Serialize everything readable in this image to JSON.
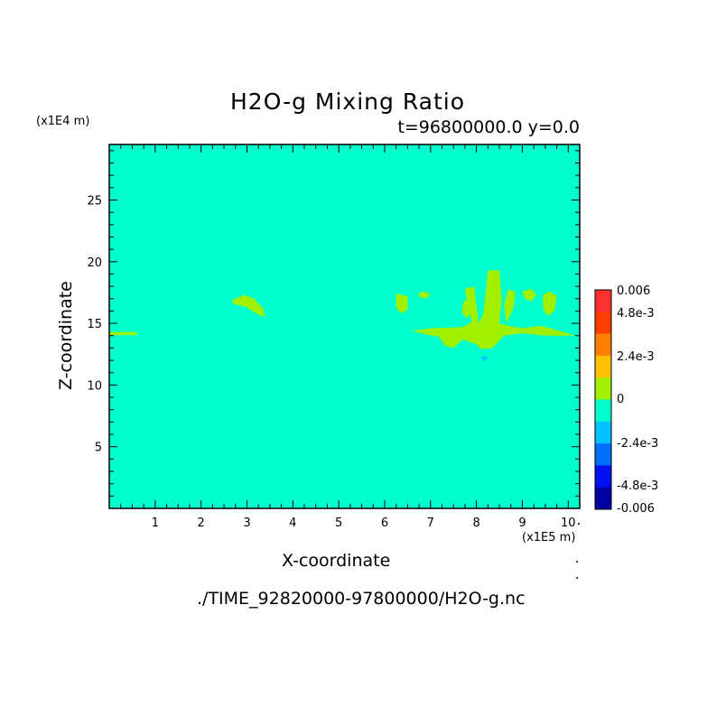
{
  "chart_data": {
    "type": "heatmap",
    "title": "H2O-g Mixing Ratio",
    "subtitle": "t=96800000.0 y=0.0",
    "xlabel": "X-coordinate",
    "ylabel": "Z-coordinate",
    "x_unit": "(x1E5 m)",
    "y_unit": "(x1E4 m)",
    "xlim": [
      0,
      10.25
    ],
    "ylim": [
      0,
      29.5
    ],
    "x_ticks": [
      "1",
      "2",
      "3",
      "4",
      "5",
      "6",
      "7",
      "8",
      "9",
      "10"
    ],
    "y_ticks": [
      "5",
      "10",
      "15",
      "20",
      "25"
    ],
    "background_value": 0,
    "background_color": "#00ffcc",
    "colorbar": {
      "labels": [
        "0.006",
        "4.8e-3",
        "2.4e-3",
        "0",
        "-2.4e-3",
        "-4.8e-3",
        "-0.006"
      ],
      "colors": [
        "#ff3030",
        "#ff4000",
        "#ff8000",
        "#ffc000",
        "#a0f000",
        "#00ffcc",
        "#00c0ff",
        "#0070ff",
        "#0010f0",
        "#0000a0"
      ]
    },
    "regions": [
      {
        "value": 0.0012,
        "color": "#a0f000",
        "points": [
          [
            2.68,
            16.9
          ],
          [
            2.95,
            17.3
          ],
          [
            3.15,
            17.0
          ],
          [
            3.35,
            16.2
          ],
          [
            3.4,
            15.5
          ],
          [
            3.2,
            15.8
          ],
          [
            3.0,
            16.3
          ],
          [
            2.7,
            16.6
          ]
        ]
      },
      {
        "value": 0.0012,
        "color": "#a0f000",
        "points": [
          [
            6.25,
            17.4
          ],
          [
            6.5,
            17.2
          ],
          [
            6.5,
            16.1
          ],
          [
            6.35,
            15.8
          ],
          [
            6.25,
            16.3
          ]
        ]
      },
      {
        "value": 0.0012,
        "color": "#a0f000",
        "points": [
          [
            6.8,
            17.6
          ],
          [
            7.0,
            17.4
          ],
          [
            6.9,
            17.0
          ],
          [
            6.72,
            17.2
          ]
        ]
      },
      {
        "value": 0.0012,
        "color": "#a0f000",
        "points": [
          [
            7.0,
            14.6
          ],
          [
            7.7,
            14.7
          ],
          [
            7.9,
            15.1
          ],
          [
            7.8,
            16.5
          ],
          [
            7.75,
            17.8
          ],
          [
            7.95,
            18.0
          ],
          [
            8.0,
            16.5
          ],
          [
            8.05,
            15.0
          ],
          [
            8.15,
            15.8
          ],
          [
            8.25,
            19.3
          ],
          [
            8.5,
            19.3
          ],
          [
            8.55,
            17.0
          ],
          [
            8.5,
            15.0
          ],
          [
            8.7,
            14.8
          ],
          [
            9.0,
            14.6
          ],
          [
            9.4,
            14.8
          ],
          [
            9.9,
            14.3
          ],
          [
            10.15,
            14.0
          ],
          [
            9.5,
            14.0
          ],
          [
            9.0,
            14.2
          ],
          [
            8.6,
            14.0
          ],
          [
            8.35,
            13.0
          ],
          [
            8.1,
            12.9
          ],
          [
            8.0,
            13.3
          ],
          [
            7.7,
            13.7
          ],
          [
            7.5,
            13.0
          ],
          [
            7.3,
            13.2
          ],
          [
            7.2,
            13.9
          ],
          [
            6.9,
            14.1
          ],
          [
            6.6,
            14.4
          ]
        ]
      },
      {
        "value": 0.0012,
        "color": "#a0f000",
        "points": [
          [
            7.72,
            16.8
          ],
          [
            7.85,
            17.0
          ],
          [
            7.9,
            16.0
          ],
          [
            7.78,
            15.4
          ],
          [
            7.68,
            15.9
          ]
        ]
      },
      {
        "value": 0.0012,
        "color": "#a0f000",
        "points": [
          [
            8.7,
            17.8
          ],
          [
            8.85,
            17.5
          ],
          [
            8.8,
            16.2
          ],
          [
            8.65,
            15.0
          ],
          [
            8.6,
            16.5
          ]
        ]
      },
      {
        "value": 0.0012,
        "color": "#a0f000",
        "points": [
          [
            9.0,
            17.6
          ],
          [
            9.2,
            17.8
          ],
          [
            9.3,
            17.3
          ],
          [
            9.2,
            16.8
          ],
          [
            9.05,
            17.0
          ]
        ]
      },
      {
        "value": 0.0012,
        "color": "#a0f000",
        "points": [
          [
            9.45,
            17.3
          ],
          [
            9.6,
            17.6
          ],
          [
            9.75,
            17.2
          ],
          [
            9.7,
            16.0
          ],
          [
            9.55,
            15.6
          ],
          [
            9.45,
            16.2
          ]
        ]
      },
      {
        "value": 0.0012,
        "color": "#a0f000",
        "points": [
          [
            0.0,
            14.3
          ],
          [
            0.6,
            14.3
          ],
          [
            0.6,
            14.05
          ],
          [
            0.0,
            14.05
          ]
        ]
      },
      {
        "value": -0.0012,
        "color": "#00c0ff",
        "points": [
          [
            8.1,
            12.3
          ],
          [
            8.25,
            12.3
          ],
          [
            8.18,
            11.9
          ]
        ]
      }
    ]
  }
}
